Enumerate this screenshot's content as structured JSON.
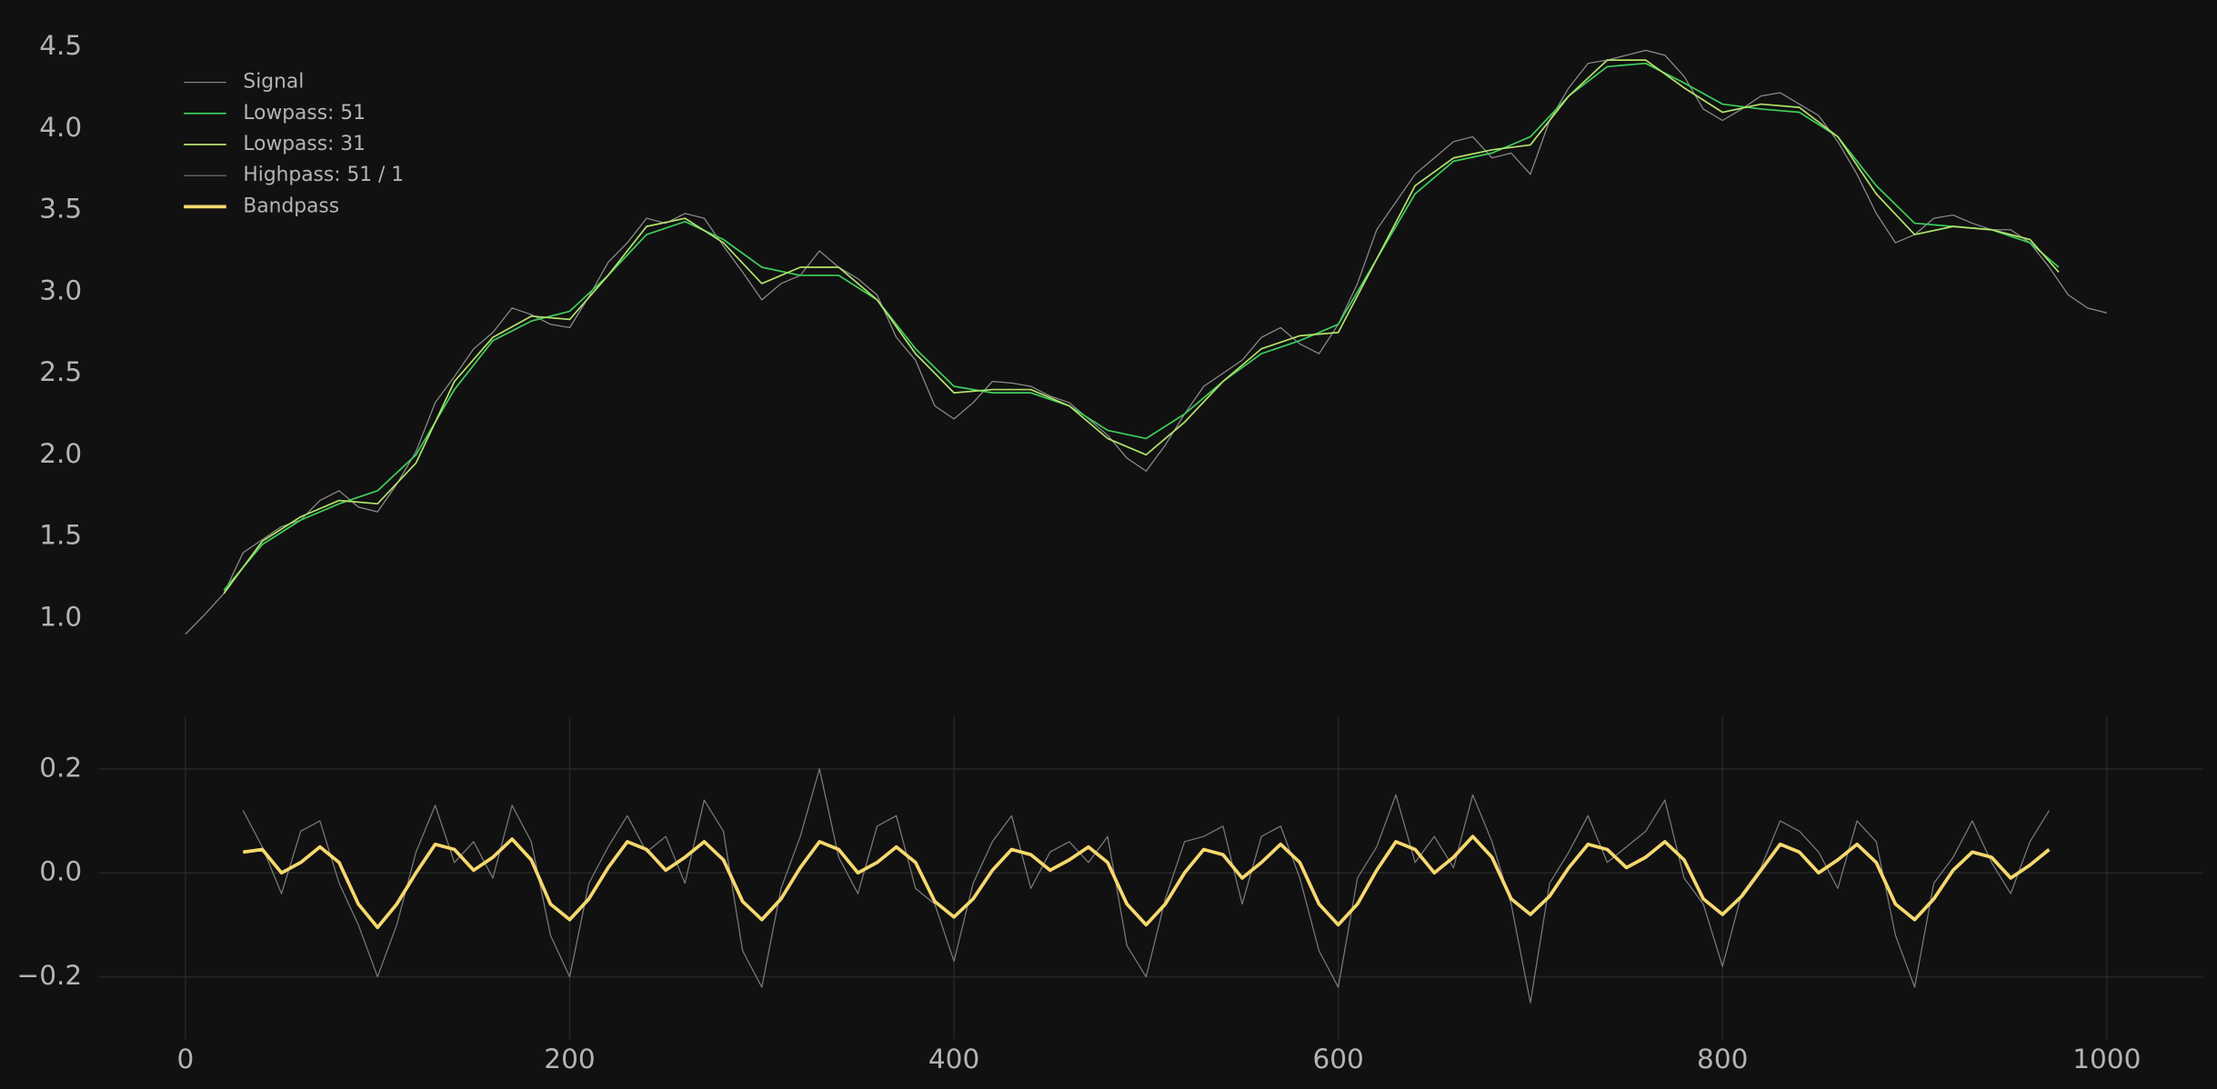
{
  "chart_data": [
    {
      "type": "line",
      "xlim": [
        -45,
        1050
      ],
      "ylim": [
        0.75,
        4.6
      ],
      "yticks": [
        {
          "value": 1,
          "label": "1.0"
        },
        1.5,
        {
          "value": 2,
          "label": "2.0"
        },
        2.5,
        {
          "value": 3,
          "label": "3.0"
        },
        3.5,
        {
          "value": 4,
          "label": "4.0"
        },
        4.5
      ],
      "grid": false,
      "legend": "upper left",
      "series": [
        {
          "name": "Signal",
          "color": "#8c8c8c",
          "linewidth": 0.8,
          "x": [
            0,
            10,
            20,
            30,
            40,
            50,
            60,
            70,
            80,
            90,
            100,
            110,
            120,
            130,
            140,
            150,
            160,
            170,
            180,
            190,
            200,
            210,
            220,
            230,
            240,
            250,
            260,
            270,
            280,
            290,
            300,
            310,
            320,
            330,
            340,
            350,
            360,
            370,
            380,
            390,
            400,
            410,
            420,
            430,
            440,
            450,
            460,
            470,
            480,
            490,
            500,
            510,
            520,
            530,
            540,
            550,
            560,
            570,
            580,
            590,
            600,
            610,
            620,
            630,
            640,
            650,
            660,
            670,
            680,
            690,
            700,
            710,
            720,
            730,
            740,
            750,
            760,
            770,
            780,
            790,
            800,
            810,
            820,
            830,
            840,
            850,
            860,
            870,
            880,
            890,
            900,
            910,
            920,
            930,
            940,
            950,
            960,
            970,
            980,
            990,
            1000
          ],
          "values": [
            0.9,
            1.02,
            1.15,
            1.4,
            1.48,
            1.56,
            1.6,
            1.72,
            1.78,
            1.68,
            1.65,
            1.82,
            2.02,
            2.32,
            2.48,
            2.65,
            2.75,
            2.9,
            2.86,
            2.8,
            2.78,
            2.97,
            3.18,
            3.3,
            3.45,
            3.42,
            3.48,
            3.45,
            3.28,
            3.12,
            2.95,
            3.05,
            3.1,
            3.25,
            3.15,
            3.08,
            2.98,
            2.72,
            2.58,
            2.3,
            2.22,
            2.32,
            2.45,
            2.44,
            2.42,
            2.36,
            2.32,
            2.22,
            2.12,
            1.98,
            1.9,
            2.06,
            2.25,
            2.42,
            2.5,
            2.58,
            2.72,
            2.78,
            2.68,
            2.62,
            2.8,
            3.05,
            3.38,
            3.55,
            3.72,
            3.82,
            3.92,
            3.95,
            3.82,
            3.85,
            3.72,
            4.05,
            4.25,
            4.4,
            4.42,
            4.45,
            4.48,
            4.45,
            4.32,
            4.12,
            4.05,
            4.12,
            4.2,
            4.22,
            4.15,
            4.08,
            3.92,
            3.72,
            3.48,
            3.3,
            3.35,
            3.45,
            3.47,
            3.42,
            3.38,
            3.38,
            3.3,
            3.15,
            2.98,
            2.9,
            2.87
          ]
        },
        {
          "name": "Lowpass: 51",
          "color": "#3ecf5b",
          "linewidth": 1.1,
          "x": [
            20,
            40,
            60,
            80,
            100,
            120,
            140,
            160,
            180,
            200,
            220,
            240,
            260,
            280,
            300,
            320,
            340,
            360,
            380,
            400,
            420,
            440,
            460,
            480,
            500,
            520,
            540,
            560,
            580,
            600,
            620,
            640,
            660,
            680,
            700,
            720,
            740,
            760,
            780,
            800,
            820,
            840,
            860,
            880,
            900,
            920,
            940,
            960,
            975
          ],
          "values": [
            1.17,
            1.45,
            1.6,
            1.7,
            1.78,
            2.0,
            2.4,
            2.7,
            2.82,
            2.88,
            3.1,
            3.35,
            3.43,
            3.32,
            3.15,
            3.1,
            3.1,
            2.95,
            2.65,
            2.42,
            2.38,
            2.38,
            2.3,
            2.15,
            2.1,
            2.25,
            2.45,
            2.62,
            2.7,
            2.8,
            3.2,
            3.6,
            3.8,
            3.85,
            3.95,
            4.2,
            4.38,
            4.4,
            4.28,
            4.15,
            4.12,
            4.1,
            3.95,
            3.65,
            3.42,
            3.4,
            3.38,
            3.3,
            3.15
          ]
        },
        {
          "name": "Lowpass: 31",
          "color": "#b3e26c",
          "linewidth": 1.1,
          "x": [
            20,
            40,
            60,
            80,
            100,
            120,
            140,
            160,
            180,
            200,
            220,
            240,
            260,
            280,
            300,
            320,
            340,
            360,
            380,
            400,
            420,
            440,
            460,
            480,
            500,
            520,
            540,
            560,
            580,
            600,
            620,
            640,
            660,
            680,
            700,
            720,
            740,
            760,
            780,
            800,
            820,
            840,
            860,
            880,
            900,
            920,
            940,
            960,
            975
          ],
          "values": [
            1.15,
            1.47,
            1.62,
            1.72,
            1.7,
            1.95,
            2.45,
            2.72,
            2.85,
            2.83,
            3.1,
            3.4,
            3.45,
            3.3,
            3.05,
            3.15,
            3.15,
            2.95,
            2.62,
            2.38,
            2.4,
            2.4,
            2.3,
            2.1,
            2.0,
            2.2,
            2.45,
            2.65,
            2.73,
            2.75,
            3.2,
            3.65,
            3.82,
            3.87,
            3.9,
            4.2,
            4.42,
            4.42,
            4.25,
            4.1,
            4.15,
            4.13,
            3.95,
            3.6,
            3.35,
            3.4,
            3.38,
            3.32,
            3.12
          ]
        }
      ]
    },
    {
      "type": "line",
      "xlim": [
        -45,
        1050
      ],
      "ylim": [
        -0.32,
        0.3
      ],
      "xticks": [
        0,
        200,
        400,
        600,
        800,
        1000
      ],
      "yticks": [
        {
          "value": -0.2,
          "label": "−0.2"
        },
        {
          "value": 0,
          "label": "0.0"
        },
        0.2
      ],
      "grid": true,
      "series": [
        {
          "name": "Highpass: 51 / 1",
          "color": "#7a7a7a",
          "linewidth": 0.8,
          "x": [
            30,
            40,
            50,
            60,
            70,
            80,
            90,
            100,
            110,
            120,
            130,
            140,
            150,
            160,
            170,
            180,
            190,
            200,
            210,
            220,
            230,
            240,
            250,
            260,
            270,
            280,
            290,
            300,
            310,
            320,
            330,
            340,
            350,
            360,
            370,
            380,
            390,
            400,
            410,
            420,
            430,
            440,
            450,
            460,
            470,
            480,
            490,
            500,
            510,
            520,
            530,
            540,
            550,
            560,
            570,
            580,
            590,
            600,
            610,
            620,
            630,
            640,
            650,
            660,
            670,
            680,
            690,
            700,
            710,
            720,
            730,
            740,
            750,
            760,
            770,
            780,
            790,
            800,
            810,
            820,
            830,
            840,
            850,
            860,
            870,
            880,
            890,
            900,
            910,
            920,
            930,
            940,
            950,
            960,
            970
          ],
          "values": [
            0.12,
            0.05,
            -0.04,
            0.08,
            0.1,
            -0.02,
            -0.1,
            -0.2,
            -0.1,
            0.04,
            0.13,
            0.02,
            0.06,
            -0.01,
            0.13,
            0.06,
            -0.12,
            -0.2,
            -0.02,
            0.05,
            0.11,
            0.04,
            0.07,
            -0.02,
            0.14,
            0.08,
            -0.15,
            -0.22,
            -0.03,
            0.07,
            0.2,
            0.03,
            -0.04,
            0.09,
            0.11,
            -0.03,
            -0.06,
            -0.17,
            -0.02,
            0.06,
            0.11,
            -0.03,
            0.04,
            0.06,
            0.02,
            0.07,
            -0.14,
            -0.2,
            -0.05,
            0.06,
            0.07,
            0.09,
            -0.06,
            0.07,
            0.09,
            -0.01,
            -0.15,
            -0.22,
            -0.01,
            0.05,
            0.15,
            0.02,
            0.07,
            0.01,
            0.15,
            0.06,
            -0.06,
            -0.25,
            -0.02,
            0.04,
            0.11,
            0.02,
            0.05,
            0.08,
            0.14,
            -0.01,
            -0.06,
            -0.18,
            -0.04,
            0.01,
            0.1,
            0.08,
            0.04,
            -0.03,
            0.1,
            0.06,
            -0.12,
            -0.22,
            -0.02,
            0.03,
            0.1,
            0.02,
            -0.04,
            0.06,
            0.12
          ]
        },
        {
          "name": "Bandpass",
          "color": "#f6d86e",
          "linewidth": 2.4,
          "x": [
            30,
            40,
            50,
            60,
            70,
            80,
            90,
            100,
            110,
            120,
            130,
            140,
            150,
            160,
            170,
            180,
            190,
            200,
            210,
            220,
            230,
            240,
            250,
            260,
            270,
            280,
            290,
            300,
            310,
            320,
            330,
            340,
            350,
            360,
            370,
            380,
            390,
            400,
            410,
            420,
            430,
            440,
            450,
            460,
            470,
            480,
            490,
            500,
            510,
            520,
            530,
            540,
            550,
            560,
            570,
            580,
            590,
            600,
            610,
            620,
            630,
            640,
            650,
            660,
            670,
            680,
            690,
            700,
            710,
            720,
            730,
            740,
            750,
            760,
            770,
            780,
            790,
            800,
            810,
            820,
            830,
            840,
            850,
            860,
            870,
            880,
            890,
            900,
            910,
            920,
            930,
            940,
            950,
            960,
            970
          ],
          "values": [
            0.04,
            0.045,
            0.0,
            0.02,
            0.05,
            0.02,
            -0.06,
            -0.105,
            -0.06,
            0.0,
            0.055,
            0.045,
            0.005,
            0.03,
            0.065,
            0.025,
            -0.06,
            -0.09,
            -0.05,
            0.01,
            0.06,
            0.045,
            0.005,
            0.03,
            0.06,
            0.025,
            -0.055,
            -0.09,
            -0.05,
            0.01,
            0.06,
            0.045,
            0.0,
            0.02,
            0.05,
            0.02,
            -0.055,
            -0.085,
            -0.05,
            0.005,
            0.045,
            0.035,
            0.005,
            0.025,
            0.05,
            0.02,
            -0.06,
            -0.1,
            -0.06,
            0.0,
            0.045,
            0.035,
            -0.01,
            0.02,
            0.055,
            0.02,
            -0.06,
            -0.1,
            -0.06,
            0.005,
            0.06,
            0.045,
            0.0,
            0.03,
            0.07,
            0.03,
            -0.05,
            -0.08,
            -0.045,
            0.01,
            0.055,
            0.045,
            0.01,
            0.03,
            0.06,
            0.025,
            -0.05,
            -0.08,
            -0.045,
            0.005,
            0.055,
            0.04,
            0.0,
            0.025,
            0.055,
            0.02,
            -0.06,
            -0.09,
            -0.05,
            0.005,
            0.04,
            0.03,
            -0.01,
            0.015,
            0.045
          ]
        }
      ]
    }
  ]
}
